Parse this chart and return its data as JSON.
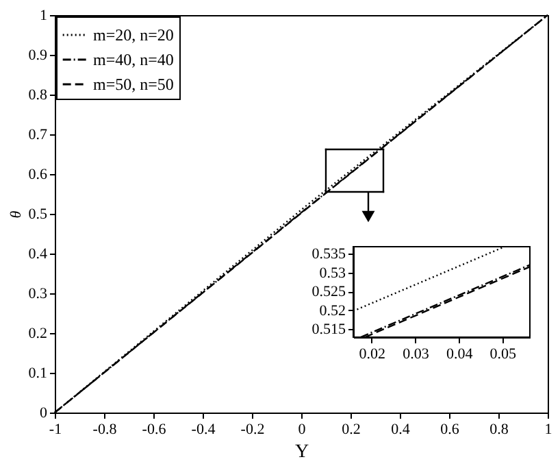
{
  "chart_data": [
    {
      "type": "line",
      "xlabel": "Y",
      "ylabel": "θ",
      "xlim": [
        -1,
        1
      ],
      "ylim": [
        0,
        1
      ],
      "xticks": [
        -1,
        -0.8,
        -0.6,
        -0.4,
        -0.2,
        0,
        0.2,
        0.4,
        0.6,
        0.8,
        1
      ],
      "yticks": [
        0,
        0.1,
        0.2,
        0.3,
        0.4,
        0.5,
        0.6,
        0.7,
        0.8,
        0.9,
        1
      ],
      "grid": false,
      "legend": "top left",
      "series": [
        {
          "name": "m=20, n=20",
          "color": "#000000",
          "line_style": "dotted",
          "x": [
            -1,
            0.02,
            1
          ],
          "values": [
            0,
            0.52,
            1
          ]
        },
        {
          "name": "m=40, n=40",
          "color": "#000000",
          "line_style": "dashdot",
          "x": [
            -1,
            0.02,
            1
          ],
          "values": [
            0,
            0.513,
            1
          ]
        },
        {
          "name": "m=50, n=50",
          "color": "#000000",
          "line_style": "dashed",
          "x": [
            -1,
            0.02,
            1
          ],
          "values": [
            0,
            0.512,
            1
          ]
        }
      ]
    },
    {
      "type": "line",
      "xlim": [
        0.0158,
        0.0563
      ],
      "ylim": [
        0.5129,
        0.5368
      ],
      "xticks": [
        0.02,
        0.03,
        0.04,
        0.05
      ],
      "yticks": [
        0.515,
        0.52,
        0.525,
        0.53,
        0.535
      ],
      "grid": false,
      "series": [
        {
          "color": "#000000",
          "line_style": "dotted",
          "x": [
            0.0158,
            0.0505
          ],
          "values": [
            0.5198,
            0.5368
          ]
        },
        {
          "color": "#000000",
          "line_style": "dashdot",
          "x": [
            0.0175,
            0.0563
          ],
          "values": [
            0.5129,
            0.532
          ]
        },
        {
          "color": "#000000",
          "line_style": "dashed",
          "x": [
            0.0185,
            0.0563
          ],
          "values": [
            0.5129,
            0.5315
          ]
        }
      ]
    }
  ]
}
